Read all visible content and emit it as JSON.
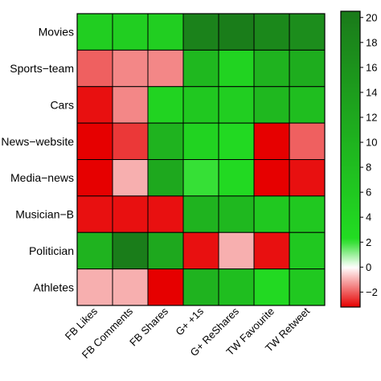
{
  "chart_data": {
    "type": "heatmap",
    "title": "",
    "xlabel": "",
    "ylabel": "",
    "rows": [
      "Movies",
      "Sports−team",
      "Cars",
      "News−website",
      "Media−news",
      "Musician−B",
      "Politician",
      "Athletes"
    ],
    "columns": [
      "FB Likes",
      "FB Comments",
      "FB Shares",
      "G+ +1s",
      "G+ ReShares",
      "TW Favourite",
      "TW Retweet"
    ],
    "values": [
      [
        5,
        5,
        5,
        19,
        20,
        18,
        17
      ],
      [
        -2,
        -1.5,
        -1.5,
        9,
        4,
        10,
        11
      ],
      [
        -3,
        -1.5,
        4,
        6,
        5,
        9,
        8
      ],
      [
        -5,
        -2.5,
        10,
        4,
        3,
        -5,
        -2
      ],
      [
        -4,
        -1,
        12,
        2,
        3,
        -4,
        -3
      ],
      [
        -3,
        -3,
        -3,
        10,
        9,
        6,
        6
      ],
      [
        10,
        20,
        12,
        -3,
        -1,
        -3,
        6
      ],
      [
        -1,
        -1,
        -4,
        10,
        8,
        3,
        6
      ]
    ],
    "colorbar": {
      "ticks": [
        20,
        18,
        16,
        14,
        12,
        10,
        8,
        6,
        4,
        2,
        0,
        -2
      ],
      "labels": [
        "20",
        "18",
        "16",
        "14",
        "12",
        "10",
        "8",
        "6",
        "4",
        "2",
        "0",
        "−2"
      ],
      "min": -3.2,
      "max": 20.5,
      "low_color": "#e60000",
      "mid_color": "#ffffff",
      "high_color": "#1a7a1a",
      "bright_green": "#22dd22"
    }
  }
}
